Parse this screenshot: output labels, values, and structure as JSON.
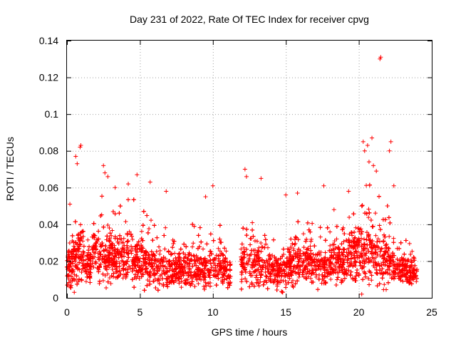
{
  "chart_data": {
    "type": "scatter",
    "title": "Day 231 of 2022, Rate Of TEC Index for receiver cpvg",
    "xlabel": "GPS time / hours",
    "ylabel": "ROTI / TECUs",
    "xlim": [
      0,
      25
    ],
    "ylim": [
      0,
      0.14
    ],
    "xticks": [
      0,
      5,
      10,
      15,
      20,
      25
    ],
    "yticks": [
      0,
      0.02,
      0.04,
      0.06,
      0.08,
      0.1,
      0.12,
      0.14
    ],
    "ytick_labels": [
      "0",
      "0.02",
      "0.04",
      "0.06",
      "0.08",
      "0.1",
      "0.12",
      "0.14"
    ],
    "grid": true,
    "marker": "+",
    "color": "#ff0000",
    "data_coverage_hours": [
      0,
      24
    ],
    "data_gap_hours": [
      11.2,
      11.9
    ],
    "series": [
      {
        "profile": [
          {
            "x": 0.0,
            "y": 0.017,
            "spread": 0.009,
            "max": 0.03
          },
          {
            "x": 0.5,
            "y": 0.02,
            "spread": 0.011,
            "max": 0.04
          },
          {
            "x": 0.9,
            "y": 0.025,
            "spread": 0.015,
            "max": 0.05
          },
          {
            "x": 1.3,
            "y": 0.016,
            "spread": 0.006,
            "max": 0.03
          },
          {
            "x": 1.8,
            "y": 0.025,
            "spread": 0.012,
            "max": 0.045
          },
          {
            "x": 2.5,
            "y": 0.024,
            "spread": 0.014,
            "max": 0.06
          },
          {
            "x": 3.5,
            "y": 0.021,
            "spread": 0.012,
            "max": 0.05
          },
          {
            "x": 4.5,
            "y": 0.022,
            "spread": 0.013,
            "max": 0.055
          },
          {
            "x": 5.5,
            "y": 0.018,
            "spread": 0.01,
            "max": 0.045
          },
          {
            "x": 6.5,
            "y": 0.016,
            "spread": 0.009,
            "max": 0.04
          },
          {
            "x": 7.5,
            "y": 0.015,
            "spread": 0.008,
            "max": 0.035
          },
          {
            "x": 8.5,
            "y": 0.017,
            "spread": 0.01,
            "max": 0.04
          },
          {
            "x": 9.5,
            "y": 0.016,
            "spread": 0.009,
            "max": 0.045
          },
          {
            "x": 10.5,
            "y": 0.018,
            "spread": 0.01,
            "max": 0.04
          },
          {
            "x": 11.1,
            "y": 0.014,
            "spread": 0.007,
            "max": 0.03
          },
          {
            "x": 12.0,
            "y": 0.02,
            "spread": 0.012,
            "max": 0.045
          },
          {
            "x": 12.5,
            "y": 0.021,
            "spread": 0.012,
            "max": 0.05
          },
          {
            "x": 13.5,
            "y": 0.016,
            "spread": 0.009,
            "max": 0.04
          },
          {
            "x": 14.5,
            "y": 0.014,
            "spread": 0.007,
            "max": 0.03
          },
          {
            "x": 15.5,
            "y": 0.02,
            "spread": 0.012,
            "max": 0.045
          },
          {
            "x": 16.5,
            "y": 0.019,
            "spread": 0.011,
            "max": 0.045
          },
          {
            "x": 17.5,
            "y": 0.018,
            "spread": 0.01,
            "max": 0.04
          },
          {
            "x": 18.5,
            "y": 0.019,
            "spread": 0.011,
            "max": 0.04
          },
          {
            "x": 19.5,
            "y": 0.022,
            "spread": 0.013,
            "max": 0.05
          },
          {
            "x": 20.5,
            "y": 0.025,
            "spread": 0.016,
            "max": 0.065
          },
          {
            "x": 21.5,
            "y": 0.022,
            "spread": 0.015,
            "max": 0.06
          },
          {
            "x": 22.5,
            "y": 0.017,
            "spread": 0.009,
            "max": 0.04
          },
          {
            "x": 23.5,
            "y": 0.014,
            "spread": 0.006,
            "max": 0.03
          },
          {
            "x": 24.0,
            "y": 0.014,
            "spread": 0.006,
            "max": 0.025
          }
        ],
        "points_per_hour": 230,
        "notable_points": [
          {
            "x": 21.5,
            "y": 0.131
          },
          {
            "x": 21.45,
            "y": 0.13
          },
          {
            "x": 0.9,
            "y": 0.082
          },
          {
            "x": 0.95,
            "y": 0.083
          },
          {
            "x": 0.6,
            "y": 0.077
          },
          {
            "x": 0.7,
            "y": 0.073
          },
          {
            "x": 0.2,
            "y": 0.051
          },
          {
            "x": 2.5,
            "y": 0.072
          },
          {
            "x": 2.6,
            "y": 0.068
          },
          {
            "x": 2.8,
            "y": 0.066
          },
          {
            "x": 4.8,
            "y": 0.067
          },
          {
            "x": 4.2,
            "y": 0.062
          },
          {
            "x": 3.3,
            "y": 0.06
          },
          {
            "x": 5.7,
            "y": 0.063
          },
          {
            "x": 6.8,
            "y": 0.058
          },
          {
            "x": 10.0,
            "y": 0.061
          },
          {
            "x": 9.5,
            "y": 0.055
          },
          {
            "x": 12.2,
            "y": 0.07
          },
          {
            "x": 12.3,
            "y": 0.066
          },
          {
            "x": 13.3,
            "y": 0.065
          },
          {
            "x": 15.0,
            "y": 0.056
          },
          {
            "x": 15.8,
            "y": 0.057
          },
          {
            "x": 17.6,
            "y": 0.061
          },
          {
            "x": 18.3,
            "y": 0.048
          },
          {
            "x": 19.3,
            "y": 0.058
          },
          {
            "x": 20.3,
            "y": 0.085
          },
          {
            "x": 20.4,
            "y": 0.08
          },
          {
            "x": 20.6,
            "y": 0.083
          },
          {
            "x": 20.9,
            "y": 0.087
          },
          {
            "x": 20.7,
            "y": 0.074
          },
          {
            "x": 21.0,
            "y": 0.072
          },
          {
            "x": 21.2,
            "y": 0.069
          },
          {
            "x": 22.2,
            "y": 0.085
          },
          {
            "x": 22.1,
            "y": 0.08
          },
          {
            "x": 22.4,
            "y": 0.061
          },
          {
            "x": 0.5,
            "y": 0.003
          },
          {
            "x": 20.2,
            "y": 0.002
          }
        ]
      }
    ]
  }
}
